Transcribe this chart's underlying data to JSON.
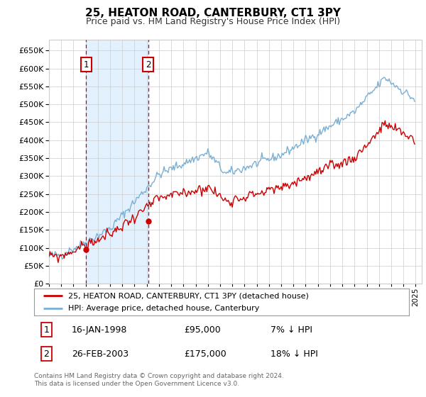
{
  "title": "25, HEATON ROAD, CANTERBURY, CT1 3PY",
  "subtitle": "Price paid vs. HM Land Registry's House Price Index (HPI)",
  "legend_line1": "25, HEATON ROAD, CANTERBURY, CT1 3PY (detached house)",
  "legend_line2": "HPI: Average price, detached house, Canterbury",
  "annotation1": {
    "label": "1",
    "date": "16-JAN-1998",
    "price": "£95,000",
    "note": "7% ↓ HPI"
  },
  "annotation2": {
    "label": "2",
    "date": "26-FEB-2003",
    "price": "£175,000",
    "note": "18% ↓ HPI"
  },
  "footer": "Contains HM Land Registry data © Crown copyright and database right 2024.\nThis data is licensed under the Open Government Licence v3.0.",
  "red_color": "#cc0000",
  "blue_color": "#7ab0d4",
  "bg_color": "#ffffff",
  "grid_color": "#cccccc",
  "shade_color": "#ddeeff",
  "annotation_box_color": "#cc0000",
  "sale1_x": 1998.04,
  "sale1_y": 95000,
  "sale2_x": 2003.12,
  "sale2_y": 175000,
  "ylim": [
    0,
    680000
  ],
  "yticks": [
    0,
    50000,
    100000,
    150000,
    200000,
    250000,
    300000,
    350000,
    400000,
    450000,
    500000,
    550000,
    600000,
    650000
  ],
  "xmin": 1995,
  "xmax": 2025.5
}
